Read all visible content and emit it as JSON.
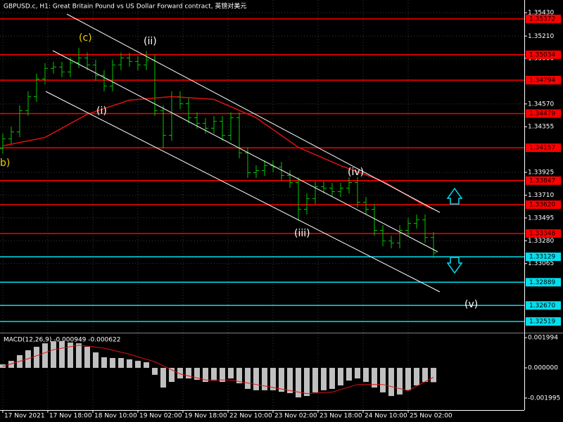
{
  "chart_data": [
    {
      "type": "ohlc",
      "title": "GBPUSD.c, H1:  Great Britain Pound vs US Dollar Forward contract, 英镑对美元",
      "color": "#00c800",
      "open": [
        1.3415,
        1.34241,
        1.34307,
        1.34507,
        1.34639,
        1.34805,
        1.34905,
        1.34918,
        1.34872,
        1.34958,
        1.35005,
        1.34938,
        1.34839,
        1.34739,
        1.34938,
        1.35005,
        1.34971,
        1.34938,
        1.34985,
        1.34507,
        1.34274,
        1.34639,
        1.34573,
        1.3444,
        1.34387,
        1.34341,
        1.34407,
        1.34274,
        1.3444,
        1.34108,
        1.33922,
        1.33942,
        1.33989,
        1.33975,
        1.33896,
        1.33829,
        1.33577,
        1.33677,
        1.3379,
        1.33776,
        1.33743,
        1.33776,
        1.33829,
        1.33643,
        1.33577,
        1.33378,
        1.33278,
        1.33258,
        1.33378,
        1.33444,
        1.33477,
        1.33311
      ],
      "high": [
        1.34291,
        1.34357,
        1.34557,
        1.34689,
        1.34855,
        1.34955,
        1.34968,
        1.34968,
        1.35008,
        1.351,
        1.35055,
        1.34988,
        1.34889,
        1.34988,
        1.35055,
        1.35055,
        1.35021,
        1.3507,
        1.35035,
        1.34557,
        1.34689,
        1.34689,
        1.34623,
        1.3449,
        1.34437,
        1.34457,
        1.34457,
        1.3449,
        1.3449,
        1.34158,
        1.33992,
        1.34039,
        1.34039,
        1.34025,
        1.33946,
        1.33879,
        1.33727,
        1.3384,
        1.3384,
        1.33826,
        1.33826,
        1.33879,
        1.33879,
        1.33693,
        1.33627,
        1.33428,
        1.33328,
        1.33428,
        1.33494,
        1.33527,
        1.33527,
        1.33361
      ],
      "low": [
        1.341,
        1.34191,
        1.34257,
        1.34457,
        1.34589,
        1.34755,
        1.34855,
        1.34822,
        1.34822,
        1.34908,
        1.34888,
        1.34789,
        1.34689,
        1.34689,
        1.34888,
        1.34921,
        1.34888,
        1.34888,
        1.34457,
        1.3415,
        1.34224,
        1.34523,
        1.3439,
        1.34337,
        1.34291,
        1.34291,
        1.34224,
        1.34224,
        1.34058,
        1.33872,
        1.33872,
        1.33892,
        1.33925,
        1.33846,
        1.33779,
        1.3347,
        1.33527,
        1.33627,
        1.33726,
        1.33693,
        1.33693,
        1.33726,
        1.33593,
        1.33527,
        1.33328,
        1.33228,
        1.33208,
        1.33208,
        1.33328,
        1.33394,
        1.33261,
        1.33115
      ],
      "close": [
        1.34241,
        1.34307,
        1.34507,
        1.34639,
        1.34805,
        1.34905,
        1.34918,
        1.34872,
        1.34958,
        1.35005,
        1.34938,
        1.34839,
        1.34739,
        1.34938,
        1.35005,
        1.34971,
        1.34938,
        1.34985,
        1.34507,
        1.34274,
        1.34639,
        1.34573,
        1.3444,
        1.34387,
        1.34341,
        1.34407,
        1.34274,
        1.3444,
        1.34108,
        1.33922,
        1.33942,
        1.33989,
        1.33975,
        1.33896,
        1.33829,
        1.33577,
        1.33677,
        1.3379,
        1.33776,
        1.33743,
        1.33776,
        1.33829,
        1.33643,
        1.33577,
        1.33378,
        1.33278,
        1.33258,
        1.33378,
        1.33444,
        1.33477,
        1.33311,
        1.33165
      ],
      "ma": {
        "color": "#e01010",
        "x": [
          0,
          5,
          10,
          15,
          20,
          25,
          30,
          35,
          40,
          45,
          50,
          51
        ],
        "values": [
          1.34175,
          1.34254,
          1.34473,
          1.34606,
          1.34639,
          1.34613,
          1.3444,
          1.34161,
          1.33989,
          1.33843,
          1.3361,
          1.33577
        ]
      },
      "xlim": [
        -0.33,
        61.75
      ],
      "xticks": [
        {
          "value": 0,
          "label": "17 Nov 2021"
        },
        {
          "value": 5.33,
          "label": "17 Nov 18:00"
        },
        {
          "value": 10.67,
          "label": "18 Nov 10:00"
        },
        {
          "value": 16,
          "label": "19 Nov 02:00"
        },
        {
          "value": 21.33,
          "label": "19 Nov 18:00"
        },
        {
          "value": 26.67,
          "label": "22 Nov 10:00"
        },
        {
          "value": 32,
          "label": "23 Nov 02:00"
        },
        {
          "value": 37.33,
          "label": "23 Nov 18:00"
        },
        {
          "value": 42.67,
          "label": "24 Nov 10:00"
        },
        {
          "value": 48,
          "label": "25 Nov 02:00"
        }
      ],
      "ylim": [
        1.3242,
        1.3555
      ],
      "yticks": [
        {
          "value": 1.3543,
          "label": "1.35430"
        },
        {
          "value": 1.3521,
          "label": "1.35210"
        },
        {
          "value": 1.35,
          "label": "1.35000"
        },
        {
          "value": 1.3457,
          "label": "1.34570"
        },
        1.34355,
        1.33925,
        {
          "value": 1.3371,
          "label": "1.33710"
        },
        1.33495,
        {
          "value": 1.3328,
          "label": "1.33280"
        },
        1.33065
      ],
      "grid": true,
      "levels": [
        {
          "value": 1.35372,
          "color": "#ff0000"
        },
        {
          "value": 1.35034,
          "color": "#ff0000"
        },
        {
          "value": 1.34794,
          "color": "#ff0000"
        },
        {
          "value": 1.34479,
          "color": "#ff0000"
        },
        {
          "value": 1.34157,
          "color": "#ff0000"
        },
        {
          "value": 1.33847,
          "color": "#ff0000"
        },
        {
          "value": 1.3362,
          "label": "1.33620",
          "color": "#ff0000"
        },
        {
          "value": 1.33348,
          "color": "#ff0000"
        },
        {
          "value": 1.33129,
          "color": "#00e0f0"
        },
        {
          "value": 1.32889,
          "color": "#00e0f0"
        },
        {
          "value": 1.3267,
          "label": "1.32670",
          "color": "#00e0f0"
        },
        {
          "value": 1.32519,
          "color": "#00e0f0"
        }
      ],
      "annotations": [
        "(c)",
        "(ii)",
        "(i)",
        "(iii)",
        "(iv)",
        "(v)",
        "b)"
      ]
    },
    {
      "type": "macd",
      "title": "MACD(12,26,9) -0.000949 -0.000622",
      "histogram": {
        "color": "#c0c0c0",
        "values": [
          0.00023,
          0.00046,
          0.00084,
          0.00116,
          0.00139,
          0.00162,
          0.00176,
          0.00176,
          0.00167,
          0.00162,
          0.00139,
          0.00102,
          0.0007,
          0.00065,
          0.00065,
          0.00056,
          0.00046,
          0.00037,
          -0.00046,
          -0.0013,
          -0.00093,
          -0.0007,
          -0.0007,
          -0.00079,
          -0.00093,
          -0.00084,
          -0.00093,
          -0.0007,
          -0.00102,
          -0.00139,
          -0.00148,
          -0.00148,
          -0.00148,
          -0.00158,
          -0.00167,
          -0.00195,
          -0.00186,
          -0.00162,
          -0.00148,
          -0.00139,
          -0.00116,
          -0.00084,
          -0.0007,
          -0.00093,
          -0.0013,
          -0.00162,
          -0.00186,
          -0.00176,
          -0.00148,
          -0.00116,
          -0.00093,
          -0.000949
        ]
      },
      "signal": {
        "color": "#e01010",
        "x": [
          0,
          3,
          6,
          9,
          12,
          15,
          18,
          21,
          24,
          27,
          30,
          33,
          36,
          39,
          42,
          45,
          48,
          51
        ],
        "values": [
          0.0001,
          0.0006,
          0.0012,
          0.0015,
          0.0013,
          0.0009,
          0.0004,
          -0.0004,
          -0.0008,
          -0.0008,
          -0.0011,
          -0.0014,
          -0.0017,
          -0.0016,
          -0.0011,
          -0.0011,
          -0.0015,
          -0.000622
        ]
      },
      "ylim": [
        -0.00274,
        0.00223
      ],
      "yticks": [
        0.001994,
        {
          "value": 0,
          "label": "0.000000"
        },
        -0.001995
      ]
    }
  ]
}
